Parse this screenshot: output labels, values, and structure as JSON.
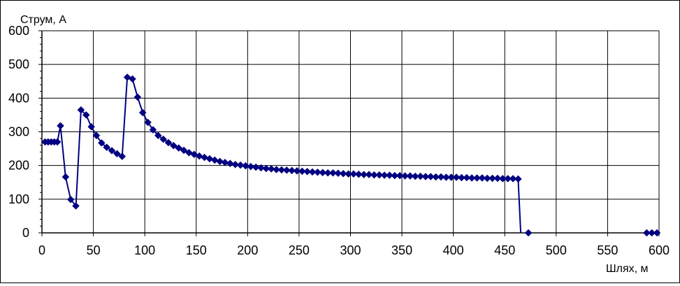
{
  "chart_data": {
    "type": "line",
    "ylabel": "Струм, А",
    "xlabel": "Шлях, м",
    "xlim": [
      0,
      600
    ],
    "ylim": [
      0,
      600
    ],
    "x_ticks": [
      "0",
      "50",
      "100",
      "150",
      "200",
      "250",
      "300",
      "350",
      "400",
      "450",
      "500",
      "550",
      "600"
    ],
    "y_ticks": [
      "0",
      "100",
      "200",
      "300",
      "400",
      "500",
      "600"
    ],
    "grid": true,
    "legend": "none",
    "colors": {
      "line": "#000080",
      "marker": "#000080",
      "grid": "#000000"
    },
    "marker": "diamond",
    "series": [
      {
        "x": [
          3,
          6,
          9,
          12,
          15,
          18,
          23,
          28,
          33,
          38,
          43,
          48,
          53,
          58,
          63,
          68,
          73,
          78,
          83,
          88,
          93,
          98,
          103,
          108,
          113,
          118,
          123,
          128,
          133,
          138,
          143,
          148,
          153,
          158,
          163,
          168,
          173,
          178,
          183,
          188,
          193,
          198,
          203,
          208,
          213,
          218,
          223,
          228,
          233,
          238,
          243,
          248,
          253,
          258,
          263,
          268,
          273,
          278,
          283,
          288,
          293,
          298,
          303,
          308,
          313,
          318,
          323,
          328,
          333,
          338,
          343,
          348,
          353,
          358,
          363,
          368,
          373,
          378,
          383,
          388,
          393,
          398,
          403,
          408,
          413,
          418,
          423,
          428,
          433,
          438,
          443,
          448,
          453,
          458,
          463,
          473,
          588,
          593,
          598
        ],
        "y": [
          270,
          270,
          270,
          270,
          270,
          318,
          166,
          99,
          80,
          365,
          350,
          315,
          289,
          267,
          254,
          244,
          235,
          227,
          462,
          457,
          403,
          357,
          328,
          306,
          289,
          278,
          268,
          259,
          252,
          245,
          238,
          233,
          228,
          224,
          220,
          216,
          212,
          209,
          206,
          203,
          201,
          199,
          197,
          195,
          193,
          191,
          190,
          188,
          187,
          186,
          185,
          184,
          183,
          182,
          181,
          180,
          179,
          178,
          178,
          177,
          176,
          175,
          175,
          174,
          173,
          173,
          172,
          172,
          171,
          171,
          170,
          170,
          169,
          169,
          168,
          168,
          167,
          167,
          166,
          166,
          165,
          165,
          165,
          164,
          164,
          163,
          163,
          163,
          162,
          162,
          162,
          161,
          161,
          161,
          160,
          0,
          0,
          0,
          0
        ],
        "line_breaks_after_index": [
          93
        ]
      }
    ]
  }
}
